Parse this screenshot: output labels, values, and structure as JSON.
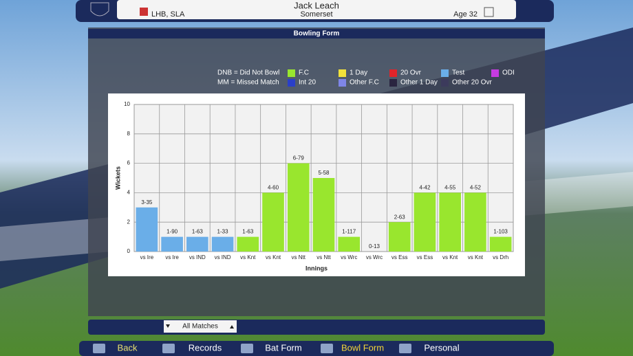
{
  "header": {
    "name": "Jack Leach",
    "style": "LHB, SLA",
    "team": "Somerset",
    "age": "Age 32"
  },
  "panel_title": "Bowling Form",
  "legend_notes": [
    "DNB = Did Not Bowl",
    "MM = Missed Match"
  ],
  "chart_data": {
    "type": "bar",
    "categories": [
      "vs Ire",
      "vs Ire",
      "vs IND",
      "vs IND",
      "vs Knt",
      "vs Knt",
      "vs Ntt",
      "vs Ntt",
      "vs Wrc",
      "vs Wrc",
      "vs Ess",
      "vs Ess",
      "vs Knt",
      "vs Knt",
      "vs Drh"
    ],
    "values": [
      3,
      1,
      1,
      1,
      1,
      4,
      6,
      5,
      1,
      0,
      2,
      4,
      4,
      4,
      1
    ],
    "value_labels": [
      "3-35",
      "1-90",
      "1-63",
      "1-33",
      "1-63",
      "4-60",
      "6-79",
      "5-58",
      "1-117",
      "0-13",
      "2-63",
      "4-42",
      "4-55",
      "4-52",
      "1-103"
    ],
    "colors": [
      "#6aaee8",
      "#6aaee8",
      "#6aaee8",
      "#6aaee8",
      "#99e62e",
      "#99e62e",
      "#99e62e",
      "#99e62e",
      "#99e62e",
      "#99e62e",
      "#99e62e",
      "#99e62e",
      "#99e62e",
      "#99e62e",
      "#99e62e"
    ],
    "ylim": [
      0,
      10
    ],
    "yticks": [
      0,
      2,
      4,
      6,
      8,
      10
    ],
    "ylabel": "Wickets",
    "xlabel": "Innings",
    "grid": true,
    "legend": [
      {
        "name": "F.C",
        "color": "#99e62e"
      },
      {
        "name": "1 Day",
        "color": "#f2e23a"
      },
      {
        "name": "20 Ovr",
        "color": "#e0242a"
      },
      {
        "name": "Test",
        "color": "#6aaee8"
      },
      {
        "name": "ODI",
        "color": "#c53be0"
      },
      {
        "name": "Int 20",
        "color": "#2a3fc9"
      },
      {
        "name": "Other F.C",
        "color": "#7f86e8"
      },
      {
        "name": "Other 1 Day",
        "color": "#2a2540"
      },
      {
        "name": "Other 20 Ovr",
        "color": "#3c3a5c"
      }
    ]
  },
  "filter": "All Matches",
  "nav": [
    "Back",
    "Records",
    "Bat Form",
    "Bowl Form",
    "Personal"
  ],
  "active_nav": 3
}
